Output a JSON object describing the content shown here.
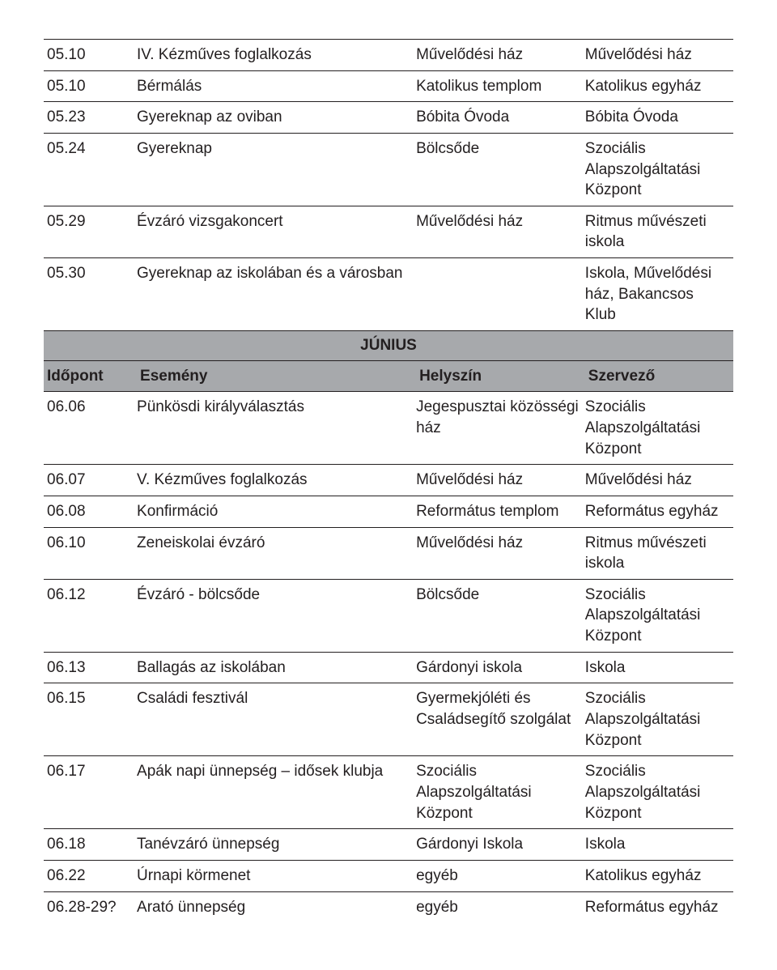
{
  "colors": {
    "header_bg": "#a7a9ac",
    "text": "#231f20",
    "rule": "#231f20",
    "page_bg": "#ffffff"
  },
  "column_widths_pct": [
    13.5,
    40.5,
    24.5,
    21.5
  ],
  "font": {
    "family": "Myriad Pro / Segoe UI / Arial",
    "size_pt": 14
  },
  "top_rows": [
    {
      "time": "05.10",
      "event": "IV. Kézműves foglalkozás",
      "location": "Művelődési ház",
      "organizer": "Művelődési ház"
    },
    {
      "time": "05.10",
      "event": "Bérmálás",
      "location": "Katolikus templom",
      "organizer": "Katolikus egyház"
    },
    {
      "time": "05.23",
      "event": "Gyereknap az oviban",
      "location": "Bóbita Óvoda",
      "organizer": "Bóbita Óvoda"
    },
    {
      "time": "05.24",
      "event": "Gyereknap",
      "location": "Bölcsőde",
      "organizer": "Szociális Alapszolgáltatási Központ"
    },
    {
      "time": "05.29",
      "event": "Évzáró vizsgakoncert",
      "location": "Művelődési ház",
      "organizer": "Ritmus művészeti iskola"
    },
    {
      "time": "05.30",
      "event": "Gyereknap az iskolában és a városban",
      "location": "",
      "organizer": "Iskola, Művelődési ház, Bakancsos Klub"
    }
  ],
  "month_label": "JÚNIUS",
  "headers": {
    "time": "Időpont",
    "event": "Esemény",
    "location": "Helyszín",
    "organizer": "Szervező"
  },
  "june_rows": [
    {
      "time": "06.06",
      "event": "Pünkösdi királyválasztás",
      "location": "Jegespusztai közösségi ház",
      "organizer": "Szociális Alapszolgáltatási Központ"
    },
    {
      "time": "06.07",
      "event": "V. Kézműves foglalkozás",
      "location": "Művelődési ház",
      "organizer": "Művelődési ház"
    },
    {
      "time": "06.08",
      "event": "Konfirmáció",
      "location": "Református templom",
      "organizer": "Református egyház"
    },
    {
      "time": "06.10",
      "event": "Zeneiskolai évzáró",
      "location": "Művelődési ház",
      "organizer": "Ritmus művészeti iskola"
    },
    {
      "time": "06.12",
      "event": "Évzáró - bölcsőde",
      "location": "Bölcsőde",
      "organizer": "Szociális Alapszolgáltatási Központ"
    },
    {
      "time": "06.13",
      "event": "Ballagás az iskolában",
      "location": "Gárdonyi iskola",
      "organizer": "Iskola"
    },
    {
      "time": "06.15",
      "event": "Családi fesztivál",
      "location": "Gyermekjóléti és Családsegítő szolgálat",
      "organizer": "Szociális Alapszolgáltatási Központ"
    },
    {
      "time": "06.17",
      "event": "Apák napi ünnepség – idősek klubja",
      "location": "Szociális Alapszolgáltatási Központ",
      "organizer": "Szociális Alapszolgáltatási Központ"
    },
    {
      "time": "06.18",
      "event": "Tanévzáró ünnepség",
      "location": "Gárdonyi Iskola",
      "organizer": "Iskola"
    },
    {
      "time": "06.22",
      "event": "Úrnapi körmenet",
      "location": "egyéb",
      "organizer": "Katolikus egyház"
    },
    {
      "time": "06.28-29?",
      "event": "Arató ünnepség",
      "location": "egyéb",
      "organizer": "Református egyház"
    }
  ]
}
